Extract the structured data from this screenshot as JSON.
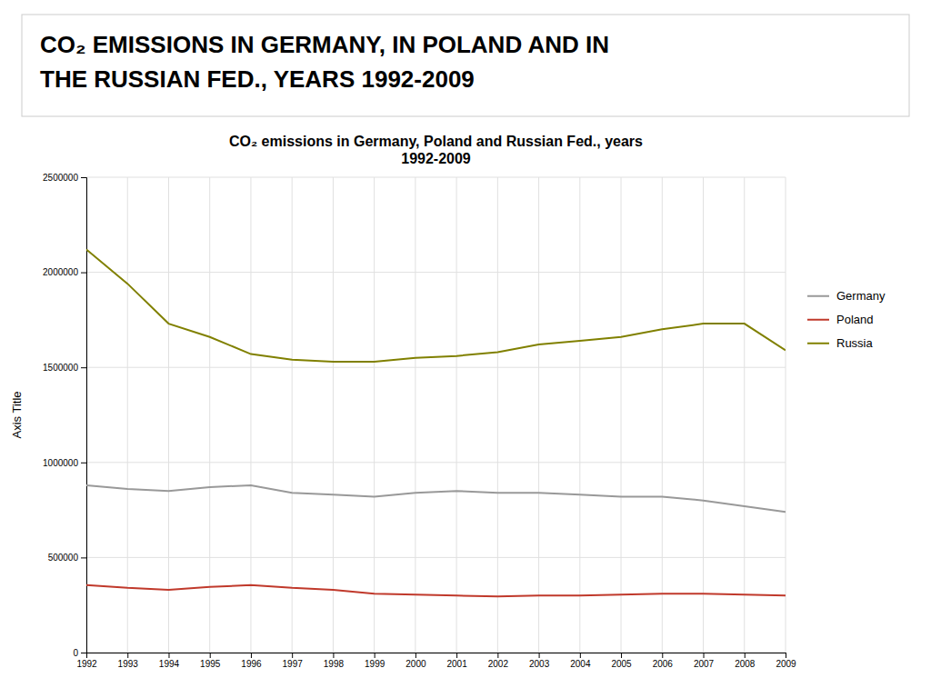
{
  "chart_data": {
    "type": "line",
    "annotations": [
      "CO₂ EMISSIONS IN GERMANY, IN POLAND AND IN",
      "THE RUSSIAN FED., YEARS  1992-2009"
    ],
    "title": "CO₂ emissions in Germany, Poland and Russian Fed., years\n1992-2009",
    "ylabel": "Axis Title",
    "x": [
      1992,
      1993,
      1994,
      1995,
      1996,
      1997,
      1998,
      1999,
      2000,
      2001,
      2002,
      2003,
      2004,
      2005,
      2006,
      2007,
      2008,
      2009
    ],
    "xlim": [
      1992,
      2009
    ],
    "xticks": [
      1992,
      1993,
      1994,
      1995,
      1996,
      1997,
      1998,
      1999,
      2000,
      2001,
      2002,
      2003,
      2004,
      2005,
      2006,
      2007,
      2008,
      2009
    ],
    "ylim": [
      0,
      2500000
    ],
    "yticks": [
      0,
      500000,
      1000000,
      1500000,
      2000000,
      2500000
    ],
    "grid": true,
    "legend": "right",
    "series": [
      {
        "name": "Germany",
        "color": "#999999",
        "values": [
          880000,
          860000,
          850000,
          870000,
          880000,
          840000,
          830000,
          820000,
          840000,
          850000,
          840000,
          840000,
          830000,
          820000,
          820000,
          800000,
          770000,
          740000
        ]
      },
      {
        "name": "Poland",
        "color": "#c0392b",
        "values": [
          355000,
          340000,
          330000,
          345000,
          355000,
          340000,
          330000,
          310000,
          305000,
          300000,
          295000,
          300000,
          300000,
          305000,
          310000,
          310000,
          305000,
          300000
        ]
      },
      {
        "name": "Russia",
        "color": "#808000",
        "values": [
          2120000,
          1940000,
          1730000,
          1660000,
          1570000,
          1540000,
          1530000,
          1530000,
          1550000,
          1560000,
          1580000,
          1620000,
          1640000,
          1660000,
          1700000,
          1730000,
          1730000,
          1590000
        ]
      }
    ]
  }
}
